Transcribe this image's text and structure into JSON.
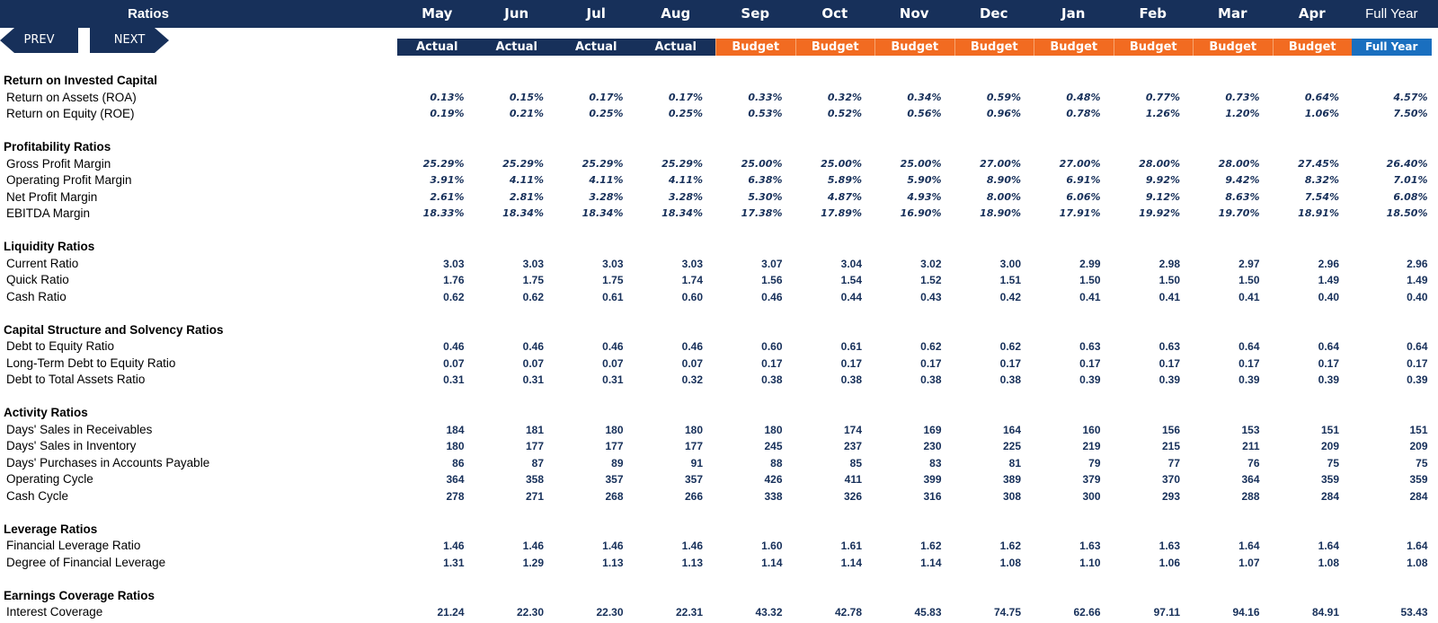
{
  "header": {
    "title": "Ratios",
    "months": [
      "May",
      "Jun",
      "Jul",
      "Aug",
      "Sep",
      "Oct",
      "Nov",
      "Dec",
      "Jan",
      "Feb",
      "Mar",
      "Apr",
      "Full Year"
    ],
    "types": [
      "Actual",
      "Actual",
      "Actual",
      "Actual",
      "Budget",
      "Budget",
      "Budget",
      "Budget",
      "Budget",
      "Budget",
      "Budget",
      "Budget",
      "Full Year"
    ],
    "prev_label": "PREV",
    "next_label": "NEXT"
  },
  "colors": {
    "navy": "#17305a",
    "budget_orange": "#f26b21",
    "full_year_blue": "#1a6fbf",
    "value_text": "#17305a"
  },
  "sections": [
    {
      "title": "Return on Invested Capital",
      "format": "pct",
      "rows": [
        {
          "label": "Return on Assets (ROA)",
          "values": [
            "0.13%",
            "0.15%",
            "0.17%",
            "0.17%",
            "0.33%",
            "0.32%",
            "0.34%",
            "0.59%",
            "0.48%",
            "0.77%",
            "0.73%",
            "0.64%",
            "4.57%"
          ]
        },
        {
          "label": "Return on Equity (ROE)",
          "values": [
            "0.19%",
            "0.21%",
            "0.25%",
            "0.25%",
            "0.53%",
            "0.52%",
            "0.56%",
            "0.96%",
            "0.78%",
            "1.26%",
            "1.20%",
            "1.06%",
            "7.50%"
          ]
        }
      ]
    },
    {
      "title": "Profitability Ratios",
      "format": "pct",
      "rows": [
        {
          "label": "Gross Profit Margin",
          "values": [
            "25.29%",
            "25.29%",
            "25.29%",
            "25.29%",
            "25.00%",
            "25.00%",
            "25.00%",
            "27.00%",
            "27.00%",
            "28.00%",
            "28.00%",
            "27.45%",
            "26.40%"
          ]
        },
        {
          "label": "Operating Profit Margin",
          "values": [
            "3.91%",
            "4.11%",
            "4.11%",
            "4.11%",
            "6.38%",
            "5.89%",
            "5.90%",
            "8.90%",
            "6.91%",
            "9.92%",
            "9.42%",
            "8.32%",
            "7.01%"
          ]
        },
        {
          "label": "Net Profit Margin",
          "values": [
            "2.61%",
            "2.81%",
            "3.28%",
            "3.28%",
            "5.30%",
            "4.87%",
            "4.93%",
            "8.00%",
            "6.06%",
            "9.12%",
            "8.63%",
            "7.54%",
            "6.08%"
          ]
        },
        {
          "label": "EBITDA Margin",
          "values": [
            "18.33%",
            "18.34%",
            "18.34%",
            "18.34%",
            "17.38%",
            "17.89%",
            "16.90%",
            "18.90%",
            "17.91%",
            "19.92%",
            "19.70%",
            "18.91%",
            "18.50%"
          ]
        }
      ]
    },
    {
      "title": "Liquidity Ratios",
      "format": "num",
      "rows": [
        {
          "label": "Current Ratio",
          "values": [
            "3.03",
            "3.03",
            "3.03",
            "3.03",
            "3.07",
            "3.04",
            "3.02",
            "3.00",
            "2.99",
            "2.98",
            "2.97",
            "2.96",
            "2.96"
          ]
        },
        {
          "label": "Quick Ratio",
          "values": [
            "1.76",
            "1.75",
            "1.75",
            "1.74",
            "1.56",
            "1.54",
            "1.52",
            "1.51",
            "1.50",
            "1.50",
            "1.50",
            "1.49",
            "1.49"
          ]
        },
        {
          "label": "Cash Ratio",
          "values": [
            "0.62",
            "0.62",
            "0.61",
            "0.60",
            "0.46",
            "0.44",
            "0.43",
            "0.42",
            "0.41",
            "0.41",
            "0.41",
            "0.40",
            "0.40"
          ]
        }
      ]
    },
    {
      "title": "Capital Structure and Solvency Ratios",
      "format": "num",
      "rows": [
        {
          "label": "Debt to Equity Ratio",
          "values": [
            "0.46",
            "0.46",
            "0.46",
            "0.46",
            "0.60",
            "0.61",
            "0.62",
            "0.62",
            "0.63",
            "0.63",
            "0.64",
            "0.64",
            "0.64"
          ]
        },
        {
          "label": "Long-Term Debt to Equity Ratio",
          "values": [
            "0.07",
            "0.07",
            "0.07",
            "0.07",
            "0.17",
            "0.17",
            "0.17",
            "0.17",
            "0.17",
            "0.17",
            "0.17",
            "0.17",
            "0.17"
          ]
        },
        {
          "label": "Debt to Total Assets Ratio",
          "values": [
            "0.31",
            "0.31",
            "0.31",
            "0.32",
            "0.38",
            "0.38",
            "0.38",
            "0.38",
            "0.39",
            "0.39",
            "0.39",
            "0.39",
            "0.39"
          ]
        }
      ]
    },
    {
      "title": "Activity Ratios",
      "format": "num",
      "rows": [
        {
          "label": "Days' Sales in Receivables",
          "values": [
            "184",
            "181",
            "180",
            "180",
            "180",
            "174",
            "169",
            "164",
            "160",
            "156",
            "153",
            "151",
            "151"
          ]
        },
        {
          "label": "Days' Sales in Inventory",
          "values": [
            "180",
            "177",
            "177",
            "177",
            "245",
            "237",
            "230",
            "225",
            "219",
            "215",
            "211",
            "209",
            "209"
          ]
        },
        {
          "label": "Days' Purchases in Accounts Payable",
          "values": [
            "86",
            "87",
            "89",
            "91",
            "88",
            "85",
            "83",
            "81",
            "79",
            "77",
            "76",
            "75",
            "75"
          ]
        },
        {
          "label": "Operating Cycle",
          "values": [
            "364",
            "358",
            "357",
            "357",
            "426",
            "411",
            "399",
            "389",
            "379",
            "370",
            "364",
            "359",
            "359"
          ]
        },
        {
          "label": "Cash Cycle",
          "values": [
            "278",
            "271",
            "268",
            "266",
            "338",
            "326",
            "316",
            "308",
            "300",
            "293",
            "288",
            "284",
            "284"
          ]
        }
      ]
    },
    {
      "title": "Leverage Ratios",
      "format": "num",
      "rows": [
        {
          "label": "Financial Leverage Ratio",
          "values": [
            "1.46",
            "1.46",
            "1.46",
            "1.46",
            "1.60",
            "1.61",
            "1.62",
            "1.62",
            "1.63",
            "1.63",
            "1.64",
            "1.64",
            "1.64"
          ]
        },
        {
          "label": "Degree of Financial Leverage",
          "values": [
            "1.31",
            "1.29",
            "1.13",
            "1.13",
            "1.14",
            "1.14",
            "1.14",
            "1.08",
            "1.10",
            "1.06",
            "1.07",
            "1.08",
            "1.08"
          ]
        }
      ]
    },
    {
      "title": "Earnings Coverage Ratios",
      "format": "num",
      "rows": [
        {
          "label": "Interest Coverage",
          "values": [
            "21.24",
            "22.30",
            "22.30",
            "22.31",
            "43.32",
            "42.78",
            "45.83",
            "74.75",
            "62.66",
            "97.11",
            "94.16",
            "84.91",
            "53.43"
          ]
        }
      ]
    }
  ]
}
